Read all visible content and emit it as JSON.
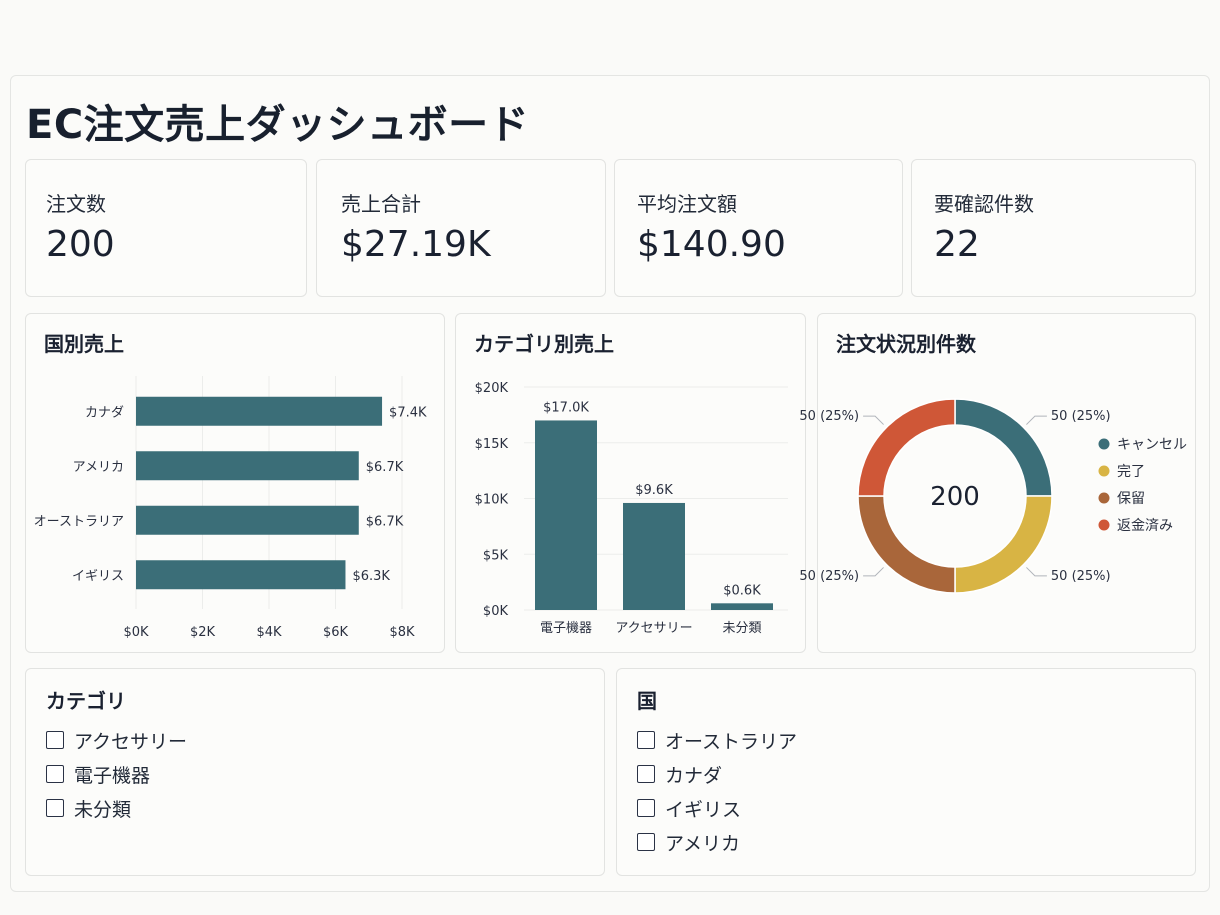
{
  "page_title": "EC注文売上ダッシュボード",
  "kpis": [
    {
      "label": "注文数",
      "value": "200"
    },
    {
      "label": "売上合計",
      "value": "$27.19K"
    },
    {
      "label": "平均注文額",
      "value": "$140.90"
    },
    {
      "label": "要確認件数",
      "value": "22"
    }
  ],
  "colors": {
    "teal": "#3b6e78",
    "yellow": "#d8b444",
    "brown": "#a9663a",
    "red": "#cf5737"
  },
  "chart_data": [
    {
      "type": "bar",
      "orientation": "horizontal",
      "title": "国別売上",
      "categories": [
        "カナダ",
        "アメリカ",
        "オーストラリア",
        "イギリス"
      ],
      "values": [
        7.4,
        6.7,
        6.7,
        6.3
      ],
      "unit": "K",
      "data_labels": [
        "$7.4K",
        "$6.7K",
        "$6.7K",
        "$6.3K"
      ],
      "xticks": [
        "$0K",
        "$2K",
        "$4K",
        "$6K",
        "$8K"
      ],
      "xlim": [
        0,
        8
      ],
      "grid": true
    },
    {
      "type": "bar",
      "title": "カテゴリ別売上",
      "categories": [
        "電子機器",
        "アクセサリー",
        "未分類"
      ],
      "values": [
        17.0,
        9.6,
        0.6
      ],
      "unit": "K",
      "data_labels": [
        "$17.0K",
        "$9.6K",
        "$0.6K"
      ],
      "yticks": [
        "$0K",
        "$5K",
        "$10K",
        "$15K",
        "$20K"
      ],
      "ylim": [
        0,
        20
      ],
      "grid": true
    },
    {
      "type": "pie",
      "donut": true,
      "title": "注文状況別件数",
      "center_label": "200",
      "categories": [
        "キャンセル",
        "完了",
        "保留",
        "返金済み"
      ],
      "values": [
        50,
        50,
        50,
        50
      ],
      "data_labels": [
        "50 (25%)",
        "50 (25%)",
        "50 (25%)",
        "50 (25%)"
      ],
      "colors": [
        "#3b6e78",
        "#d8b444",
        "#a9663a",
        "#cf5737"
      ],
      "legend": "right"
    }
  ],
  "filters": {
    "category": {
      "title": "カテゴリ",
      "options": [
        "アクセサリー",
        "電子機器",
        "未分類"
      ]
    },
    "country": {
      "title": "国",
      "options": [
        "オーストラリア",
        "カナダ",
        "イギリス",
        "アメリカ"
      ]
    }
  }
}
